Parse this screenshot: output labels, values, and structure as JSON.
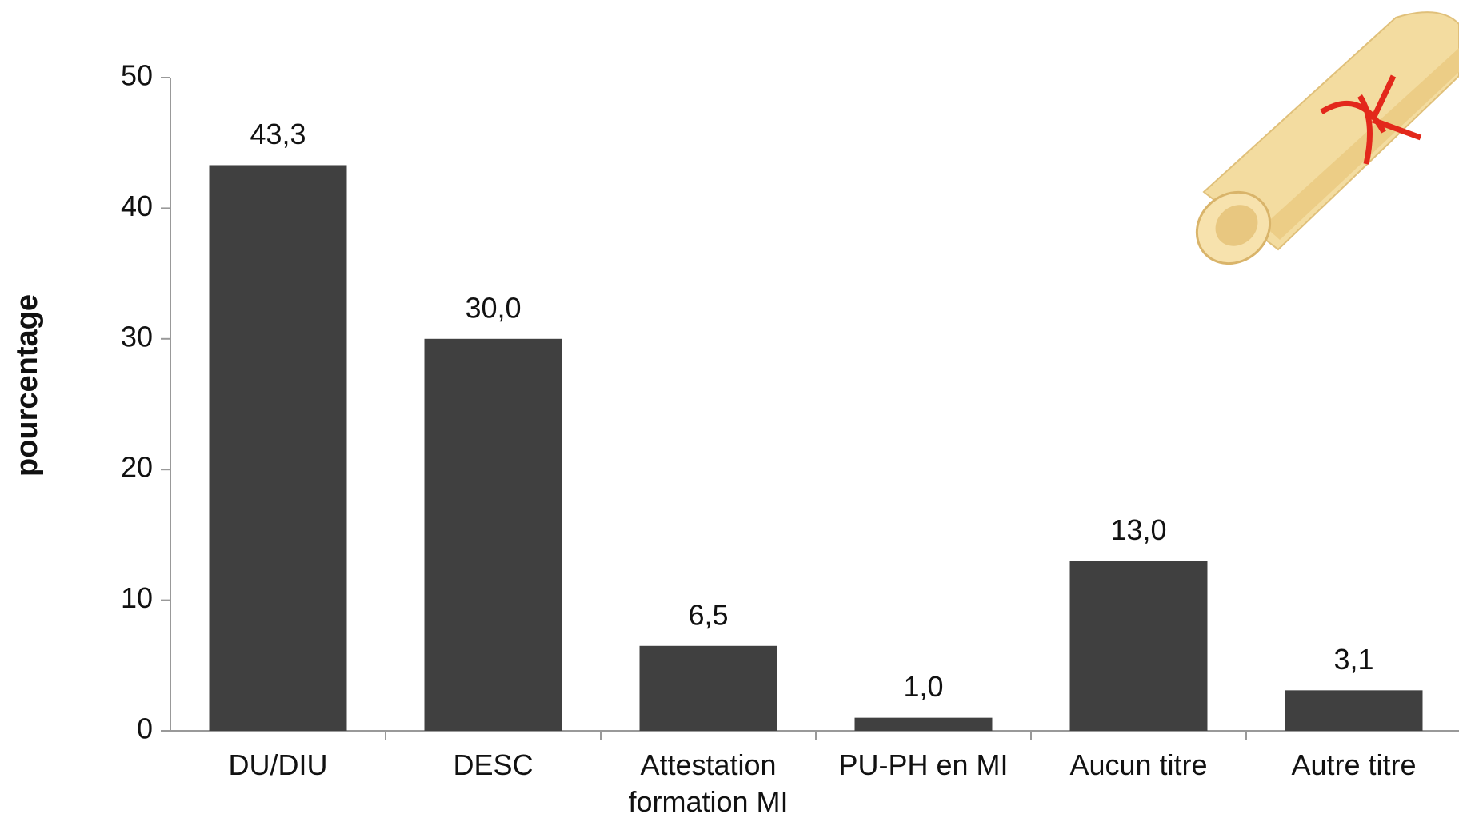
{
  "chart_data": {
    "type": "bar",
    "y_label": "pourcentage",
    "categories": [
      "DU/DIU",
      "DESC",
      "Attestation formation MI",
      "PU-PH en MI",
      "Aucun titre",
      "Autre titre"
    ],
    "values": [
      43.3,
      30.0,
      6.5,
      1.0,
      13.0,
      3.1
    ],
    "value_labels": [
      "43,3",
      "30,0",
      "6,5",
      "1,0",
      "13,0",
      "3,1"
    ],
    "color": "#404040",
    "ylim": [
      0,
      50
    ],
    "yticks": [
      0,
      10,
      20,
      30,
      40,
      50
    ],
    "grid": false
  }
}
